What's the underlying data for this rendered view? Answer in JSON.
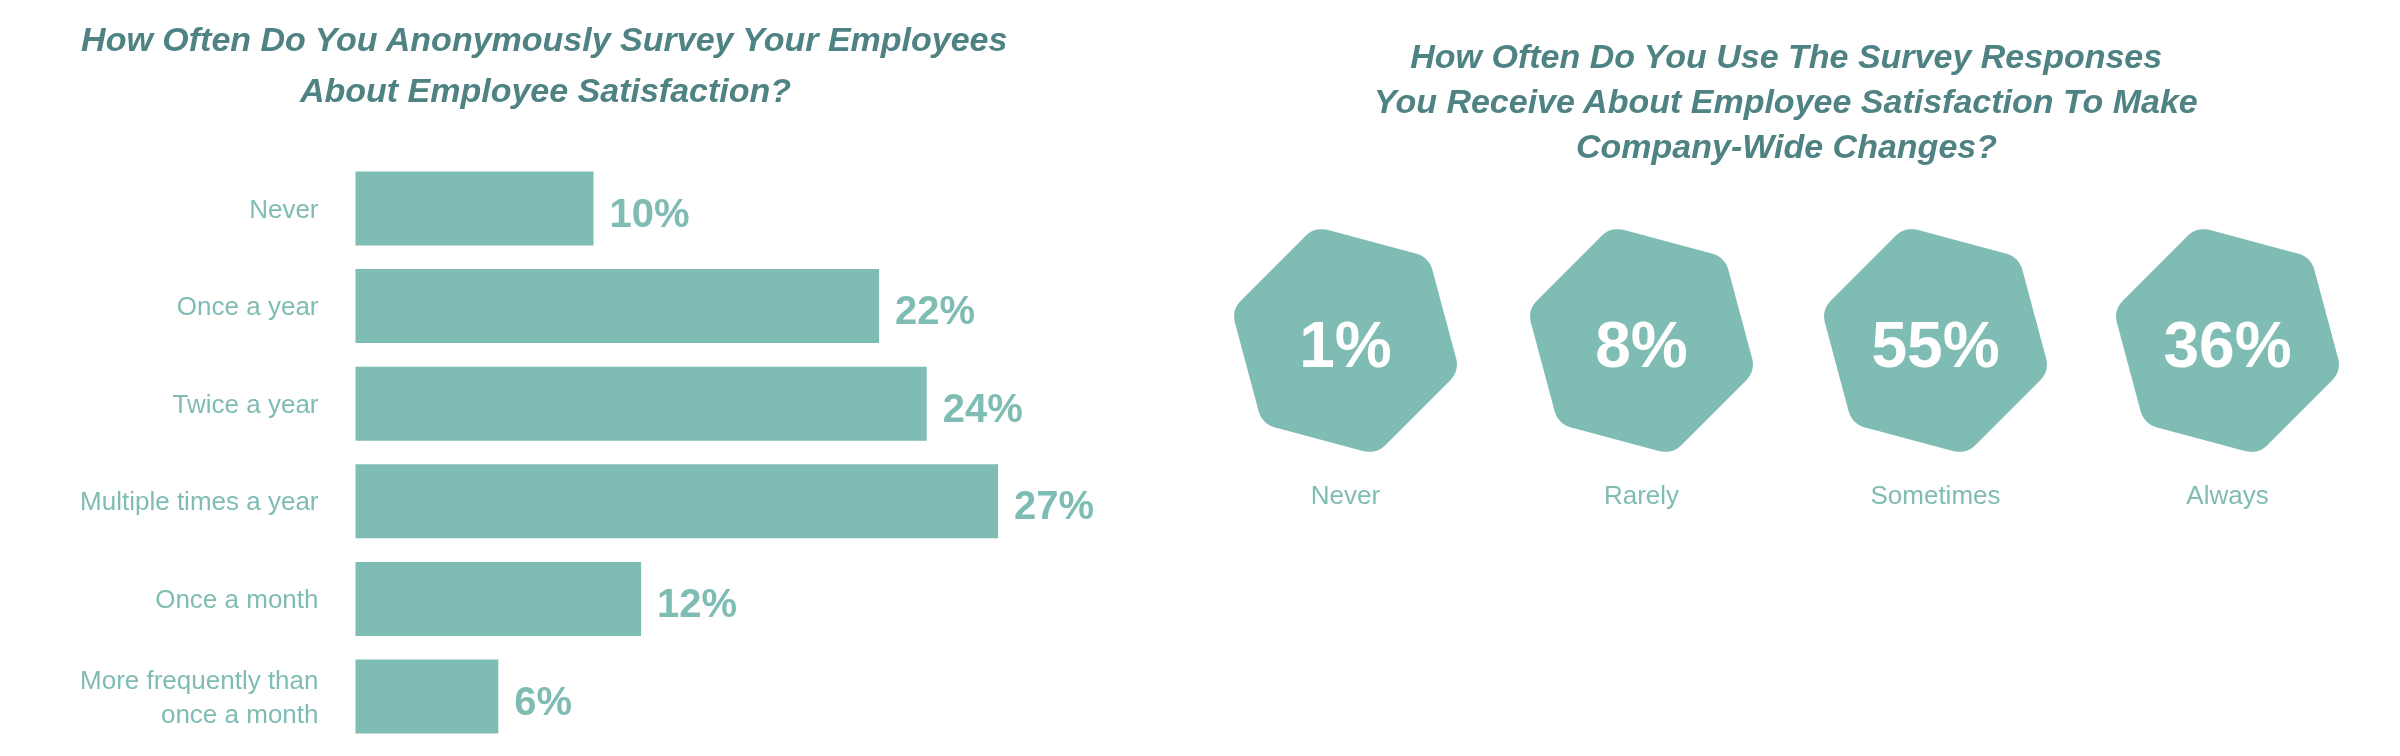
{
  "chart_data": [
    {
      "type": "bar",
      "orientation": "horizontal",
      "title": "How Often Do You Anonymously Survey Your Employees\nAbout Employee Satisfaction?",
      "categories": [
        "Never",
        "Once a year",
        "Twice a year",
        "Multiple times a year",
        "Once a month",
        "More frequently than once a month"
      ],
      "values": [
        10,
        22,
        24,
        27,
        12,
        6
      ],
      "value_labels": [
        "10%",
        "22%",
        "24%",
        "27%",
        "12%",
        "6%"
      ],
      "color": "#7fbcb3"
    },
    {
      "type": "other",
      "title": "How Often Do You Use The Survey Responses\nYou Receive About Employee Satisfaction To Make\nCompany-Wide Changes?",
      "categories": [
        "Never",
        "Rarely",
        "Sometimes",
        "Always"
      ],
      "values": [
        1,
        8,
        55,
        36
      ],
      "value_labels": [
        "1%",
        "8%",
        "55%",
        "36%"
      ],
      "color": "#7fbcb3"
    }
  ]
}
